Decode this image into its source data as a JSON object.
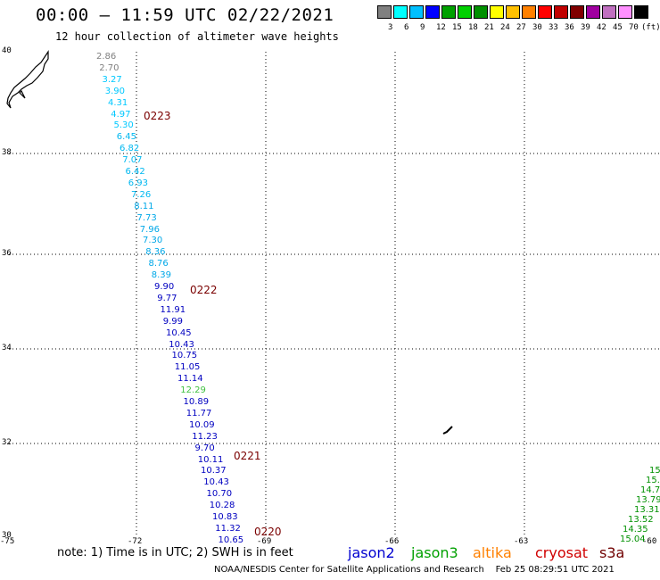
{
  "title": "00:00 – 11:59 UTC 02/22/2021",
  "subtitle": "12 hour collection of altimeter wave heights",
  "legend": {
    "colors": [
      "#808080",
      "#00ffff",
      "#00c0ff",
      "#0000ff",
      "#00a000",
      "#00d000",
      "#009000",
      "#ffff00",
      "#ffc000",
      "#ff8000",
      "#ff0000",
      "#c00000",
      "#800000",
      "#a000a0",
      "#c070c0",
      "#ff90ff",
      "#000000"
    ],
    "labels": [
      "3",
      "6",
      "9",
      "12",
      "15",
      "18",
      "21",
      "24",
      "27",
      "30",
      "33",
      "36",
      "39",
      "42",
      "45",
      "70"
    ],
    "unit": "(ft)"
  },
  "axes": {
    "lat": [
      "40",
      "38",
      "36",
      "34",
      "32",
      "30"
    ],
    "lon": [
      "-75",
      "-72",
      "-69",
      "-66",
      "-63",
      "-60"
    ]
  },
  "date_labels": [
    "0223",
    "0222",
    "0221",
    "0220"
  ],
  "wave_heights": {
    "track_main": [
      {
        "v": "2.86",
        "c": "#808080"
      },
      {
        "v": "2.70",
        "c": "#808080"
      },
      {
        "v": "3.27",
        "c": "#00c8ff"
      },
      {
        "v": "3.90",
        "c": "#00c8ff"
      },
      {
        "v": "4.31",
        "c": "#00c8ff"
      },
      {
        "v": "4.97",
        "c": "#00c8ff"
      },
      {
        "v": "5.30",
        "c": "#00c8ff"
      },
      {
        "v": "6.45",
        "c": "#00b8f0"
      },
      {
        "v": "6.82",
        "c": "#00b8f0"
      },
      {
        "v": "7.07",
        "c": "#00b8f0"
      },
      {
        "v": "6.42",
        "c": "#00b8f0"
      },
      {
        "v": "6.93",
        "c": "#00b8f0"
      },
      {
        "v": "7.26",
        "c": "#00b8f0"
      },
      {
        "v": "8.11",
        "c": "#00a8e8"
      },
      {
        "v": "7.73",
        "c": "#00a8e8"
      },
      {
        "v": "7.96",
        "c": "#00a8e8"
      },
      {
        "v": "7.30",
        "c": "#00a8e8"
      },
      {
        "v": "8.36",
        "c": "#00a8e8"
      },
      {
        "v": "8.76",
        "c": "#00a8e8"
      },
      {
        "v": "8.39",
        "c": "#00a8e8"
      },
      {
        "v": "9.90",
        "c": "#0000c0"
      },
      {
        "v": "9.77",
        "c": "#0000c0"
      },
      {
        "v": "11.91",
        "c": "#0000c0"
      },
      {
        "v": "9.99",
        "c": "#0000c0"
      },
      {
        "v": "10.45",
        "c": "#0000c0"
      },
      {
        "v": "10.43",
        "c": "#0000c0"
      },
      {
        "v": "10.75",
        "c": "#0000c0"
      },
      {
        "v": "11.05",
        "c": "#0000c0"
      },
      {
        "v": "11.14",
        "c": "#0000c0"
      },
      {
        "v": "12.29",
        "c": "#40c040"
      },
      {
        "v": "10.89",
        "c": "#0000c0"
      },
      {
        "v": "11.77",
        "c": "#0000c0"
      },
      {
        "v": "10.09",
        "c": "#0000c0"
      },
      {
        "v": "11.23",
        "c": "#0000c0"
      },
      {
        "v": "9.70",
        "c": "#0000c0"
      },
      {
        "v": "10.11",
        "c": "#0000c0"
      },
      {
        "v": "10.37",
        "c": "#0000c0"
      },
      {
        "v": "10.43",
        "c": "#0000c0"
      },
      {
        "v": "10.70",
        "c": "#0000c0"
      },
      {
        "v": "10.28",
        "c": "#0000c0"
      },
      {
        "v": "10.83",
        "c": "#0000c0"
      },
      {
        "v": "11.32",
        "c": "#0000c0"
      },
      {
        "v": "10.65",
        "c": "#0000c0"
      }
    ],
    "track_east": [
      "15",
      "15.",
      "14.7",
      "13.79",
      "13.31",
      "13.52",
      "14.35",
      "15.04"
    ],
    "track_east_color": "#009000"
  },
  "note": "note: 1) Time is in UTC; 2) SWH is in feet",
  "satellites": [
    {
      "name": "jason2",
      "color": "#0000d0"
    },
    {
      "name": "jason3",
      "color": "#00a000"
    },
    {
      "name": "altika",
      "color": "#ff8000"
    },
    {
      "name": "cryosat",
      "color": "#d00000"
    },
    {
      "name": "s3a",
      "color": "#700000"
    }
  ],
  "credit": "NOAA/NESDIS Center for Satellite Applications and Research    Feb 25 08:29:51 UTC 2021"
}
